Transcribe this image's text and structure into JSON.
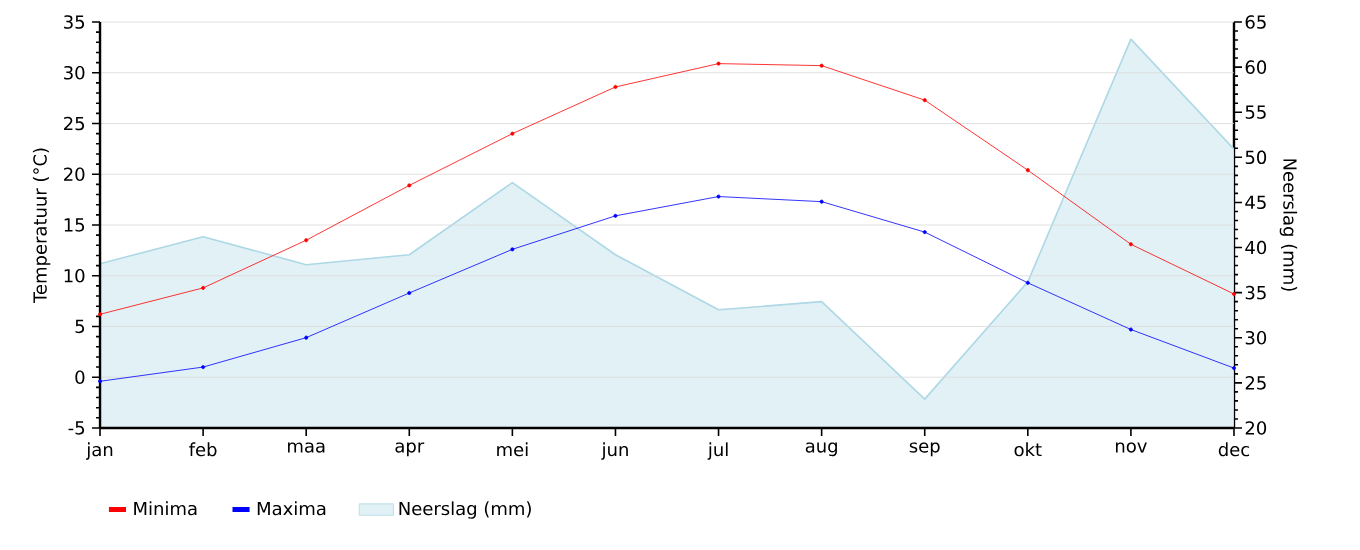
{
  "chart_data": {
    "type": "line",
    "ylabel": "Temperatuur (°C)",
    "y2label": "Neerslag (mm)",
    "categories": [
      "jan",
      "feb",
      "maa",
      "apr",
      "mei",
      "jun",
      "jul",
      "aug",
      "sep",
      "okt",
      "nov",
      "dec"
    ],
    "series": [
      {
        "name": "Minima",
        "color": "#ff0000",
        "values": [
          6.2,
          8.8,
          13.5,
          18.9,
          24.0,
          28.6,
          30.9,
          30.7,
          27.3,
          20.4,
          13.1,
          8.2
        ]
      },
      {
        "name": "Maxima",
        "color": "#0000ff",
        "values": [
          -0.4,
          1.0,
          3.9,
          8.3,
          12.6,
          15.9,
          17.8,
          17.3,
          14.3,
          9.3,
          4.7,
          0.9
        ]
      },
      {
        "name": "Neerslag (mm)",
        "type": "area",
        "axis": "y2",
        "marker": "none",
        "color": "#add8e6",
        "values": [
          38.2,
          41.2,
          38.1,
          39.2,
          47.2,
          39.2,
          33.1,
          34.0,
          23.2,
          36.2,
          63.1,
          50.9
        ]
      }
    ],
    "ylim": [
      -5,
      35
    ],
    "yticks": [
      -5,
      0,
      5,
      10,
      15,
      20,
      25,
      30,
      35
    ],
    "y2lim": [
      20,
      65
    ],
    "y2ticks": [
      20,
      25,
      30,
      35,
      40,
      45,
      50,
      55,
      60,
      65
    ],
    "grid": "y",
    "legend": "bottom",
    "marker": "circle",
    "line_style": "solid"
  }
}
